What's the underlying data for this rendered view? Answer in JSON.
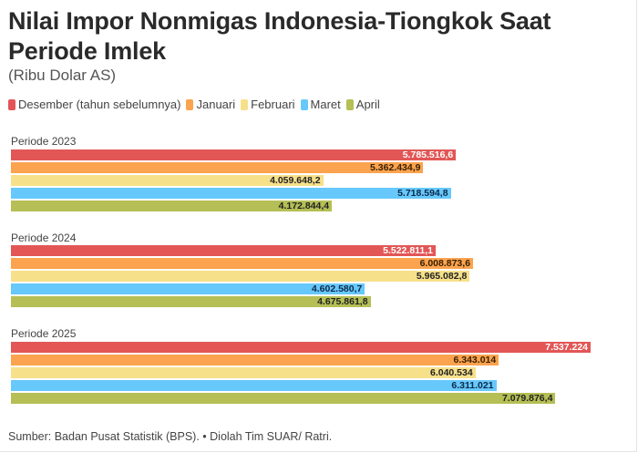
{
  "header": {
    "title": "Nilai Impor Nonmigas Indonesia-Tiongkok Saat Periode Imlek",
    "subtitle": "(Ribu Dolar AS)"
  },
  "legend": [
    {
      "label": "Desember (tahun sebelumnya)",
      "color": "#e35656"
    },
    {
      "label": "Januari",
      "color": "#fba34e"
    },
    {
      "label": "Februari",
      "color": "#f7e08a"
    },
    {
      "label": "Maret",
      "color": "#67c8fb"
    },
    {
      "label": "April",
      "color": "#b5bf55"
    }
  ],
  "groups": [
    {
      "label": "Periode 2023",
      "bars": [
        {
          "value": 5785516.6,
          "text": "5.785.516,6"
        },
        {
          "value": 5362434.9,
          "text": "5.362.434,9"
        },
        {
          "value": 4059648.2,
          "text": "4.059.648,2"
        },
        {
          "value": 5718594.8,
          "text": "5.718.594,8"
        },
        {
          "value": 4172844.4,
          "text": "4.172.844,4"
        }
      ]
    },
    {
      "label": "Periode 2024",
      "bars": [
        {
          "value": 5522811.1,
          "text": "5.522.811,1"
        },
        {
          "value": 6008873.6,
          "text": "6.008.873,6"
        },
        {
          "value": 5965082.8,
          "text": "5.965.082,8"
        },
        {
          "value": 4602580.7,
          "text": "4.602.580,7"
        },
        {
          "value": 4675861.8,
          "text": "4.675.861,8"
        }
      ]
    },
    {
      "label": "Periode 2025",
      "bars": [
        {
          "value": 7537224,
          "text": "7.537.224"
        },
        {
          "value": 6343014,
          "text": "6.343.014"
        },
        {
          "value": 6040534,
          "text": "6.040.534"
        },
        {
          "value": 6311021,
          "text": "6.311.021"
        },
        {
          "value": 7079876.4,
          "text": "7.079.876,4"
        }
      ]
    }
  ],
  "footer": {
    "source": "Sumber: Badan Pusat Statistik (BPS). • Diolah Tim SUAR/ Ratri."
  },
  "chart_data": {
    "type": "bar",
    "orientation": "horizontal",
    "title": "Nilai Impor Nonmigas Indonesia-Tiongkok Saat Periode Imlek",
    "subtitle": "(Ribu Dolar AS)",
    "xlabel": "",
    "ylabel": "",
    "categories": [
      "Periode 2023",
      "Periode 2024",
      "Periode 2025"
    ],
    "series": [
      {
        "name": "Desember (tahun sebelumnya)",
        "color": "#e35656",
        "values": [
          5785516.6,
          5522811.1,
          7537224
        ]
      },
      {
        "name": "Januari",
        "color": "#fba34e",
        "values": [
          5362434.9,
          6008873.6,
          6343014
        ]
      },
      {
        "name": "Februari",
        "color": "#f7e08a",
        "values": [
          4059648.2,
          5965082.8,
          6040534
        ]
      },
      {
        "name": "Maret",
        "color": "#67c8fb",
        "values": [
          5718594.8,
          4602580.7,
          6311021
        ]
      },
      {
        "name": "April",
        "color": "#b5bf55",
        "values": [
          4172844.4,
          4675861.8,
          7079876.4
        ]
      }
    ],
    "legend_position": "top",
    "grid": false,
    "data_labels": true,
    "source": "Sumber: Badan Pusat Statistik (BPS). • Diolah Tim SUAR/ Ratri."
  }
}
